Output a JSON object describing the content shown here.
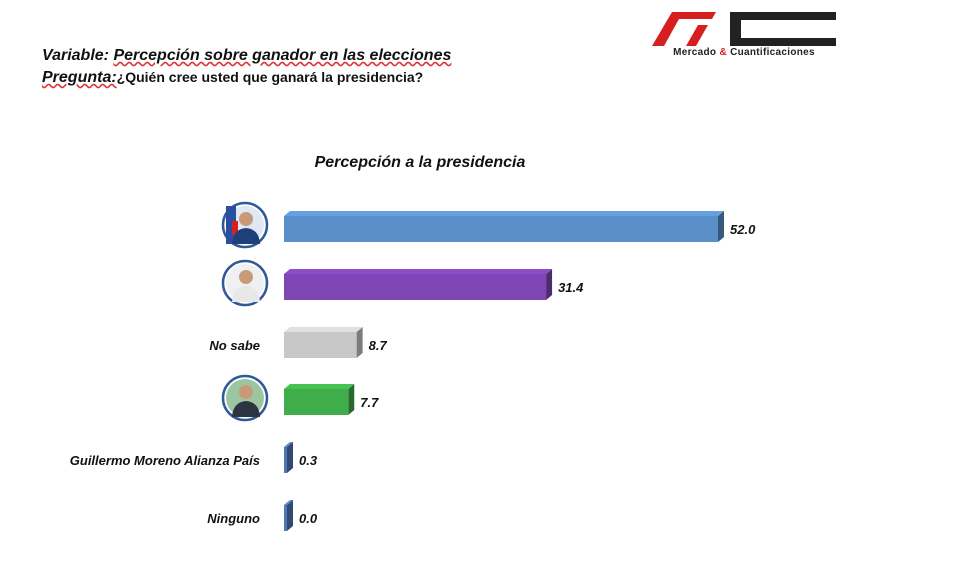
{
  "header": {
    "variable_label": "Variable:",
    "variable_value": "Percepción sobre ganador en las elecciones",
    "question_label": "Pregunta:",
    "question_value": "¿Quién cree usted que ganará la presidencia?"
  },
  "logo": {
    "name_part1": "Mercado",
    "amp": "&",
    "name_part2": "Cuantificaciones",
    "color_red": "#d62020",
    "color_dark": "#222222"
  },
  "chart_data": {
    "type": "bar",
    "orientation": "horizontal",
    "title": "Percepción a la presidencia",
    "xlim": [
      0,
      52
    ],
    "grid": false,
    "legend": "none",
    "categories": [
      "",
      "",
      "No sabe",
      "",
      "Guillermo Moreno Alianza País",
      "Ninguno"
    ],
    "category_icons": [
      "candidate-1-avatar-icon",
      "candidate-2-avatar-icon",
      "",
      "candidate-3-avatar-icon",
      "",
      ""
    ],
    "values": [
      52.0,
      31.4,
      8.7,
      7.7,
      0.3,
      0.0
    ],
    "value_labels": [
      "52.0",
      "31.4",
      "8.7",
      "7.7",
      "0.3",
      "0.0"
    ],
    "colors": [
      "#5b8fc9",
      "#7e45b5",
      "#c8c8c8",
      "#3fae4a",
      "#4e78b8",
      "#4e78b8"
    ]
  }
}
